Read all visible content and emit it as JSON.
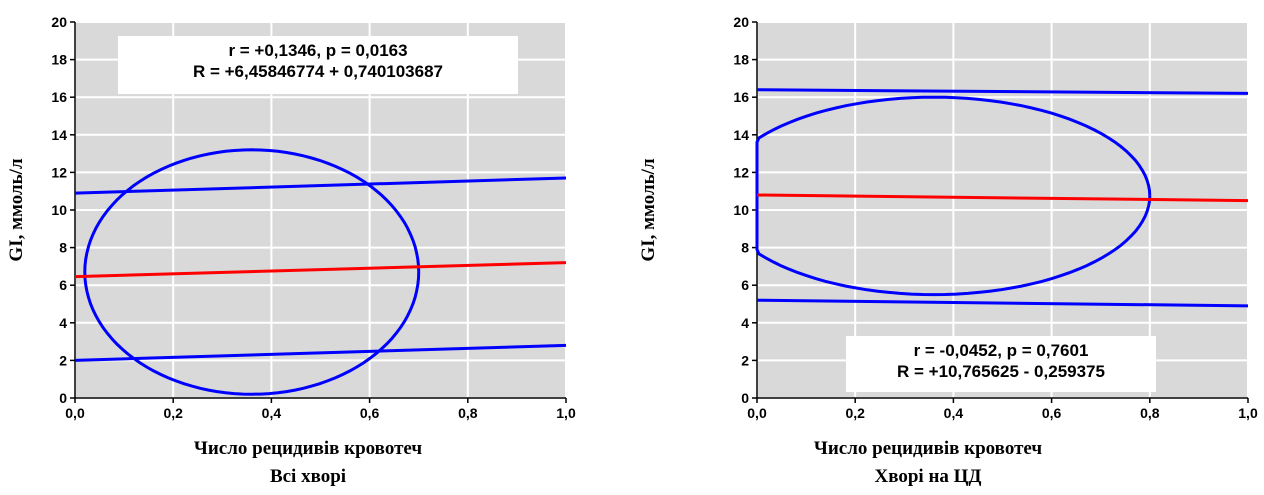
{
  "charts": [
    {
      "id": "all",
      "annotation": {
        "line1": "r = +0,1346, p = 0,0163",
        "line2": "R = +6,45846774 + 0,740103687"
      },
      "xlabel": "Число рецидивів кровотеч",
      "subtitle": "Всі хворі",
      "ylabel": "GI, ммоль/л"
    },
    {
      "id": "cd",
      "annotation": {
        "line1": "r = -0,0452, p = 0,7601",
        "line2": "R = +10,765625 - 0,259375"
      },
      "xlabel": "Число рецидивів кровотеч",
      "subtitle": "Хворі на ЦД",
      "ylabel": "GI, ммоль/л"
    }
  ],
  "chart_data": [
    {
      "type": "line",
      "xlim": [
        0,
        1
      ],
      "ylim": [
        0,
        20
      ],
      "xticks": [
        "0,0",
        "0,2",
        "0,4",
        "0,6",
        "0,8",
        "1,0"
      ],
      "yticks": [
        "0",
        "2",
        "4",
        "6",
        "8",
        "10",
        "12",
        "14",
        "16",
        "18",
        "20"
      ],
      "grid": true,
      "colors": {
        "regression": "#ff0000",
        "bounds": "#0000ff",
        "plot_bg": "#d9d9d9",
        "grid": "#ffffff"
      },
      "series": [
        {
          "role": "regression",
          "x": [
            0,
            1
          ],
          "y": [
            6.46,
            7.2
          ]
        },
        {
          "role": "upper-bound",
          "x": [
            0,
            1
          ],
          "y": [
            10.9,
            11.7
          ]
        },
        {
          "role": "lower-bound",
          "x": [
            0,
            1
          ],
          "y": [
            2.0,
            2.8
          ]
        }
      ],
      "ellipse": {
        "x_range": [
          0,
          0.69
        ],
        "y_range": [
          0.3,
          13.0
        ],
        "cx": 0.36,
        "cy": 6.7,
        "rx": 0.34,
        "ry": 6.5
      }
    },
    {
      "type": "line",
      "xlim": [
        0,
        1
      ],
      "ylim": [
        0,
        20
      ],
      "xticks": [
        "0,0",
        "0,2",
        "0,4",
        "0,6",
        "0,8",
        "1,0"
      ],
      "yticks": [
        "0",
        "2",
        "4",
        "6",
        "8",
        "10",
        "12",
        "14",
        "16",
        "18",
        "20"
      ],
      "grid": true,
      "colors": {
        "regression": "#ff0000",
        "bounds": "#0000ff",
        "plot_bg": "#d9d9d9",
        "grid": "#ffffff"
      },
      "series": [
        {
          "role": "regression",
          "x": [
            0,
            1
          ],
          "y": [
            10.8,
            10.5
          ]
        },
        {
          "role": "upper-bound",
          "x": [
            0,
            1
          ],
          "y": [
            16.4,
            16.2
          ]
        },
        {
          "role": "lower-bound",
          "x": [
            0,
            1
          ],
          "y": [
            5.2,
            4.9
          ]
        }
      ],
      "ellipse": {
        "x_range": [
          0,
          0.8
        ],
        "y_range": [
          5.5,
          16.0
        ],
        "cx": 0.36,
        "cy": 10.75,
        "rx": 0.44,
        "ry": 5.25
      }
    }
  ]
}
